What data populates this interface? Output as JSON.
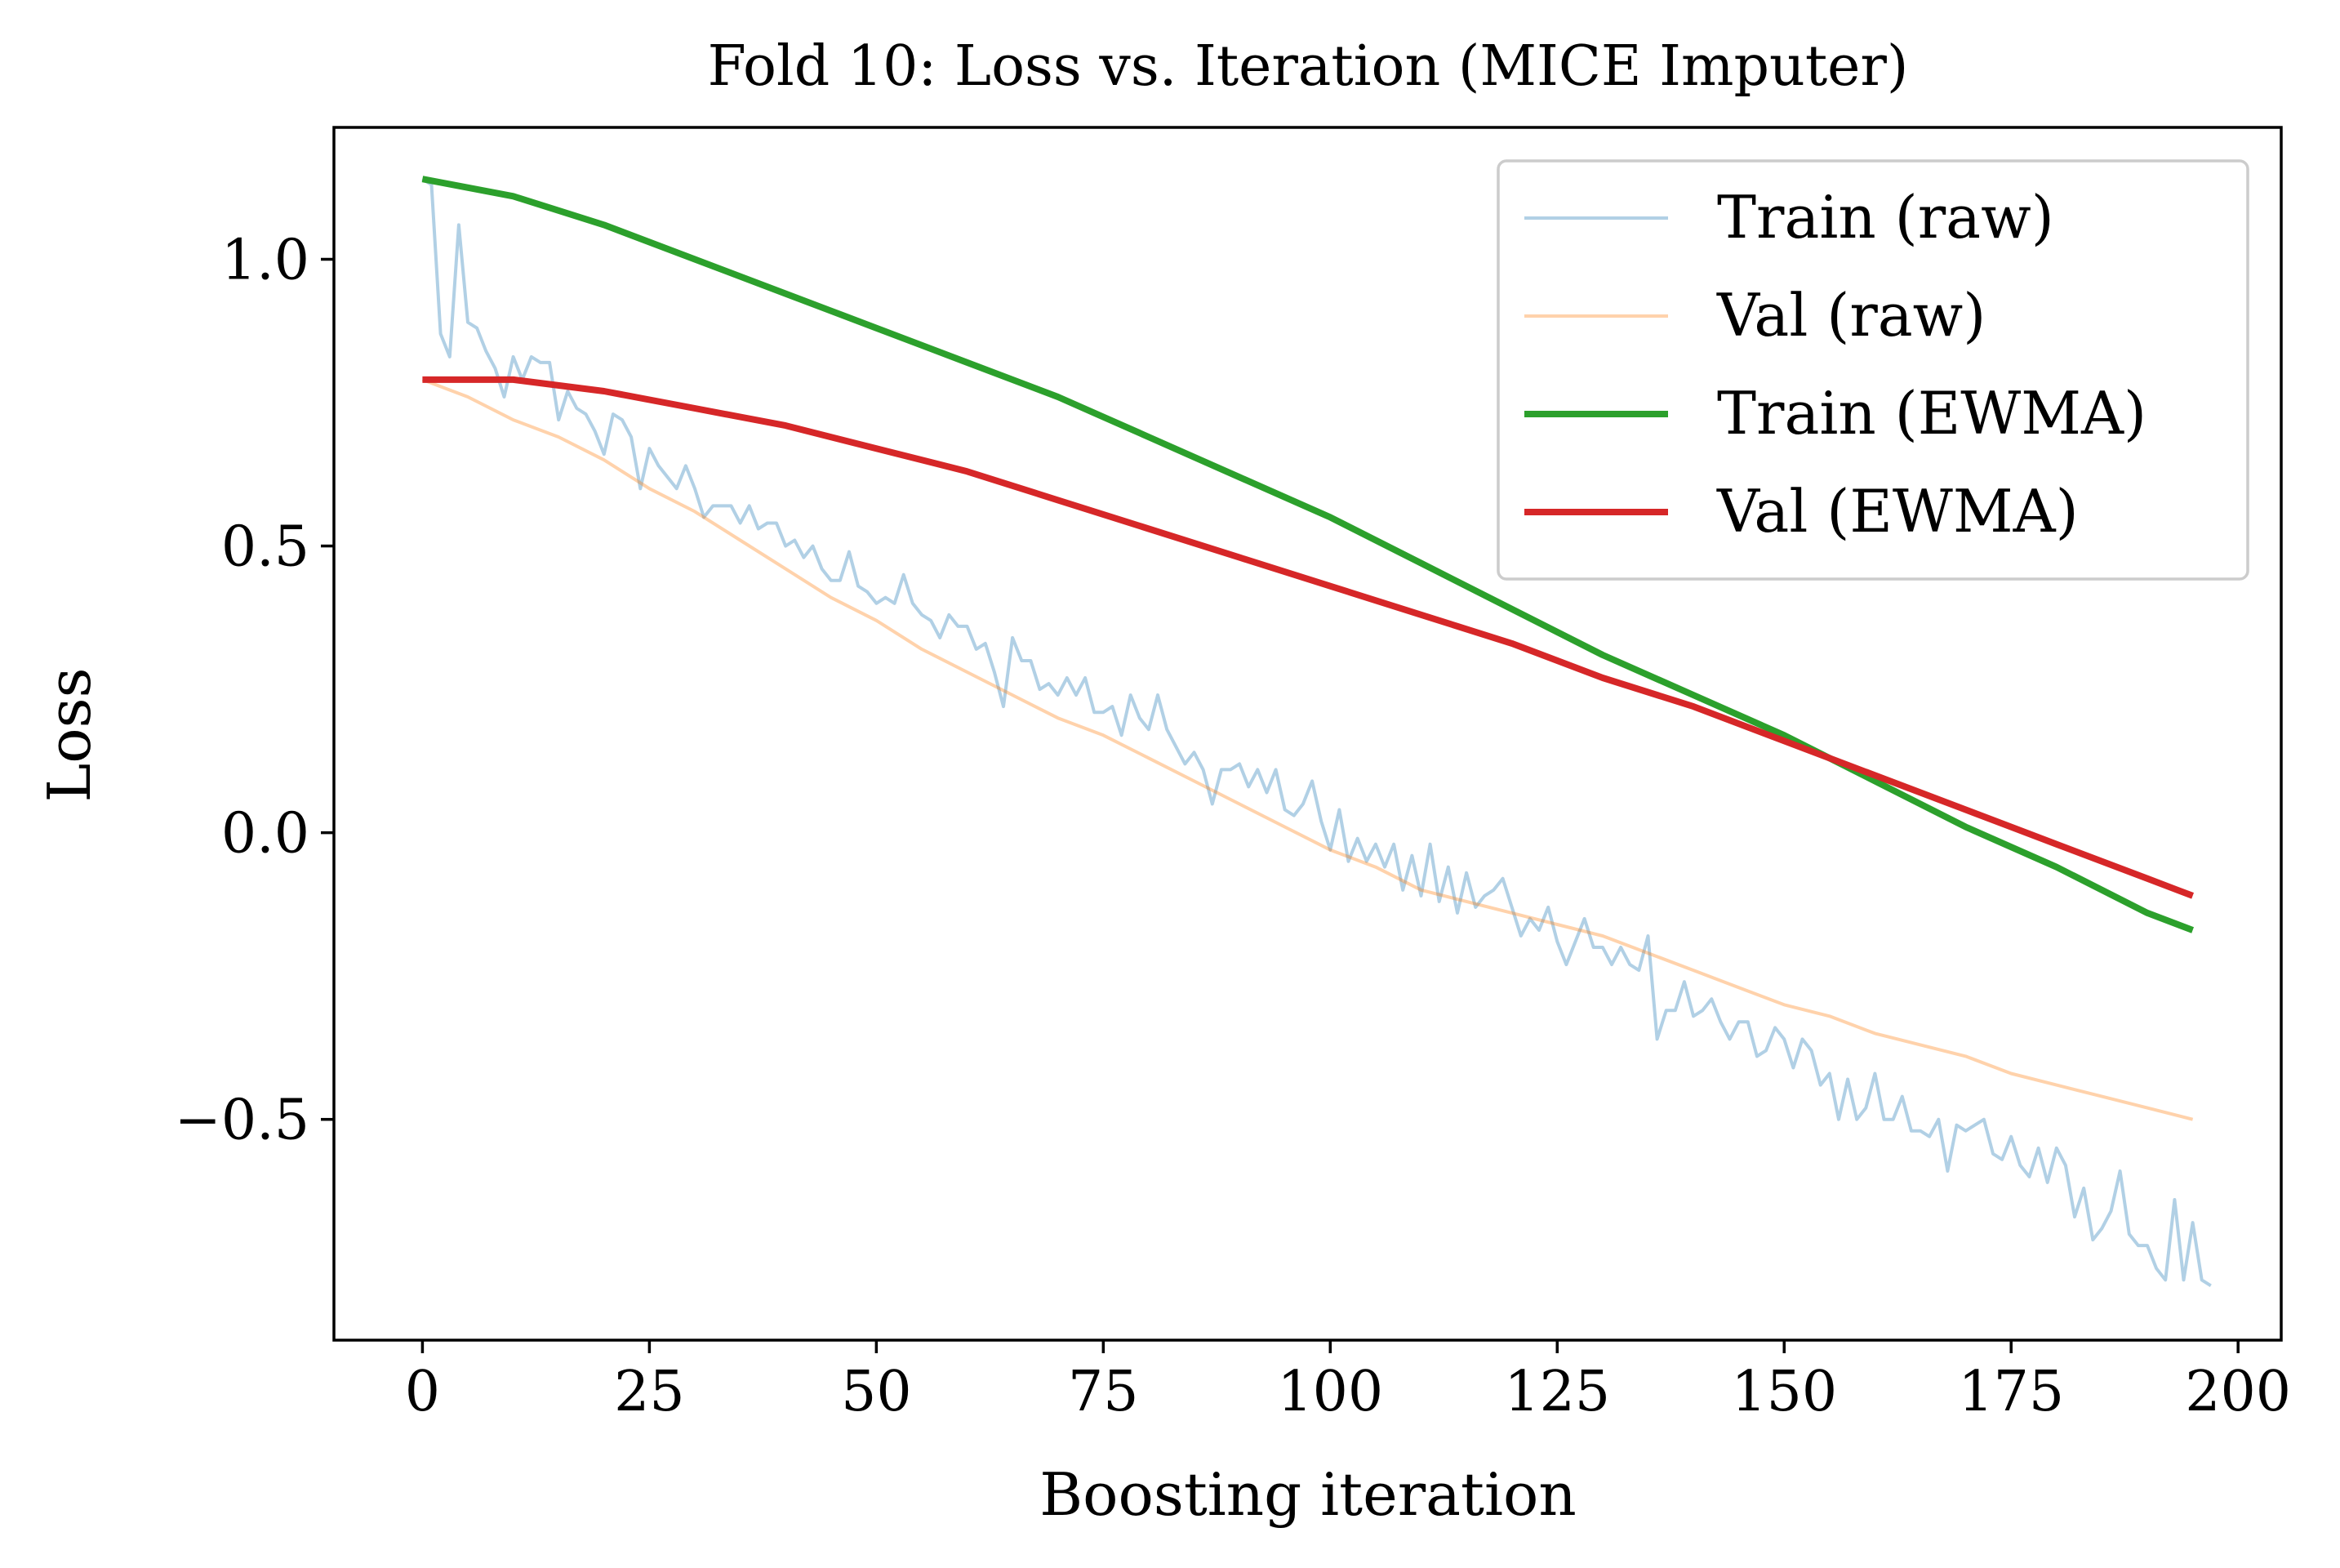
{
  "chart_data": {
    "type": "line",
    "title": "Fold 10: Loss vs. Iteration (MICE Imputer)",
    "xlabel": "Boosting iteration",
    "ylabel": "Loss",
    "xlim": [
      -9.75,
      204.75
    ],
    "ylim": [
      -0.885,
      1.23
    ],
    "xticks": [
      0,
      25,
      50,
      75,
      100,
      125,
      150,
      175,
      200
    ],
    "xtick_labels": [
      "0",
      "25",
      "50",
      "75",
      "100",
      "125",
      "150",
      "175",
      "200"
    ],
    "yticks": [
      -0.5,
      0.0,
      0.5,
      1.0
    ],
    "ytick_labels": [
      "−0.5",
      "0.0",
      "0.5",
      "1.0"
    ],
    "grid": false,
    "legend_position": "top-right",
    "series": [
      {
        "name": "Train (raw)",
        "color": "#1f77b4",
        "opacity": 0.35,
        "width": "thin",
        "points": [
          [
            0,
            1.14
          ],
          [
            1,
            1.13
          ],
          [
            2,
            0.87
          ],
          [
            3,
            0.83
          ],
          [
            4,
            1.06
          ],
          [
            5,
            0.89
          ],
          [
            6,
            0.88
          ],
          [
            7,
            0.84
          ],
          [
            8,
            0.81
          ],
          [
            9,
            0.76
          ],
          [
            10,
            0.83
          ],
          [
            11,
            0.79
          ],
          [
            12,
            0.83
          ],
          [
            13,
            0.82
          ],
          [
            14,
            0.82
          ],
          [
            15,
            0.72
          ],
          [
            16,
            0.77
          ],
          [
            17,
            0.74
          ],
          [
            18,
            0.73
          ],
          [
            19,
            0.7
          ],
          [
            20,
            0.66
          ],
          [
            21,
            0.73
          ],
          [
            22,
            0.72
          ],
          [
            23,
            0.69
          ],
          [
            24,
            0.6
          ],
          [
            25,
            0.67
          ],
          [
            26,
            0.64
          ],
          [
            27,
            0.62
          ],
          [
            28,
            0.6
          ],
          [
            29,
            0.64
          ],
          [
            30,
            0.6
          ],
          [
            31,
            0.55
          ],
          [
            32,
            0.57
          ],
          [
            33,
            0.57
          ],
          [
            34,
            0.57
          ],
          [
            35,
            0.54
          ],
          [
            36,
            0.57
          ],
          [
            37,
            0.53
          ],
          [
            38,
            0.54
          ],
          [
            39,
            0.54
          ],
          [
            40,
            0.5
          ],
          [
            41,
            0.51
          ],
          [
            42,
            0.48
          ],
          [
            43,
            0.5
          ],
          [
            44,
            0.46
          ],
          [
            45,
            0.44
          ],
          [
            46,
            0.44
          ],
          [
            47,
            0.49
          ],
          [
            48,
            0.43
          ],
          [
            49,
            0.42
          ],
          [
            50,
            0.4
          ],
          [
            51,
            0.41
          ],
          [
            52,
            0.4
          ],
          [
            53,
            0.45
          ],
          [
            54,
            0.4
          ],
          [
            55,
            0.38
          ],
          [
            56,
            0.37
          ],
          [
            57,
            0.34
          ],
          [
            58,
            0.38
          ],
          [
            59,
            0.36
          ],
          [
            60,
            0.36
          ],
          [
            61,
            0.32
          ],
          [
            62,
            0.33
          ],
          [
            63,
            0.28
          ],
          [
            64,
            0.22
          ],
          [
            65,
            0.34
          ],
          [
            66,
            0.3
          ],
          [
            67,
            0.3
          ],
          [
            68,
            0.25
          ],
          [
            69,
            0.26
          ],
          [
            70,
            0.24
          ],
          [
            71,
            0.27
          ],
          [
            72,
            0.24
          ],
          [
            73,
            0.27
          ],
          [
            74,
            0.21
          ],
          [
            75,
            0.21
          ],
          [
            76,
            0.22
          ],
          [
            77,
            0.17
          ],
          [
            78,
            0.24
          ],
          [
            79,
            0.2
          ],
          [
            80,
            0.18
          ],
          [
            81,
            0.24
          ],
          [
            82,
            0.18
          ],
          [
            83,
            0.15
          ],
          [
            84,
            0.12
          ],
          [
            85,
            0.14
          ],
          [
            86,
            0.11
          ],
          [
            87,
            0.05
          ],
          [
            88,
            0.11
          ],
          [
            89,
            0.11
          ],
          [
            90,
            0.12
          ],
          [
            91,
            0.08
          ],
          [
            92,
            0.11
          ],
          [
            93,
            0.07
          ],
          [
            94,
            0.11
          ],
          [
            95,
            0.04
          ],
          [
            96,
            0.03
          ],
          [
            97,
            0.05
          ],
          [
            98,
            0.09
          ],
          [
            99,
            0.02
          ],
          [
            100,
            -0.03
          ],
          [
            101,
            0.04
          ],
          [
            102,
            -0.05
          ],
          [
            103,
            -0.01
          ],
          [
            104,
            -0.05
          ],
          [
            105,
            -0.02
          ],
          [
            106,
            -0.06
          ],
          [
            107,
            -0.02
          ],
          [
            108,
            -0.1
          ],
          [
            109,
            -0.04
          ],
          [
            110,
            -0.11
          ],
          [
            111,
            -0.02
          ],
          [
            112,
            -0.12
          ],
          [
            113,
            -0.06
          ],
          [
            114,
            -0.14
          ],
          [
            115,
            -0.07
          ],
          [
            116,
            -0.13
          ],
          [
            117,
            -0.11
          ],
          [
            118,
            -0.1
          ],
          [
            119,
            -0.08
          ],
          [
            120,
            -0.13
          ],
          [
            121,
            -0.18
          ],
          [
            122,
            -0.15
          ],
          [
            123,
            -0.17
          ],
          [
            124,
            -0.13
          ],
          [
            125,
            -0.19
          ],
          [
            126,
            -0.23
          ],
          [
            127,
            -0.19
          ],
          [
            128,
            -0.15
          ],
          [
            129,
            -0.2
          ],
          [
            130,
            -0.2
          ],
          [
            131,
            -0.23
          ],
          [
            132,
            -0.2
          ],
          [
            133,
            -0.23
          ],
          [
            134,
            -0.24
          ],
          [
            135,
            -0.18
          ],
          [
            136,
            -0.36
          ],
          [
            137,
            -0.31
          ],
          [
            138,
            -0.31
          ],
          [
            139,
            -0.26
          ],
          [
            140,
            -0.32
          ],
          [
            141,
            -0.31
          ],
          [
            142,
            -0.29
          ],
          [
            143,
            -0.33
          ],
          [
            144,
            -0.36
          ],
          [
            145,
            -0.33
          ],
          [
            146,
            -0.33
          ],
          [
            147,
            -0.39
          ],
          [
            148,
            -0.38
          ],
          [
            149,
            -0.34
          ],
          [
            150,
            -0.36
          ],
          [
            151,
            -0.41
          ],
          [
            152,
            -0.36
          ],
          [
            153,
            -0.38
          ],
          [
            154,
            -0.44
          ],
          [
            155,
            -0.42
          ],
          [
            156,
            -0.5
          ],
          [
            157,
            -0.43
          ],
          [
            158,
            -0.5
          ],
          [
            159,
            -0.48
          ],
          [
            160,
            -0.42
          ],
          [
            161,
            -0.5
          ],
          [
            162,
            -0.5
          ],
          [
            163,
            -0.46
          ],
          [
            164,
            -0.52
          ],
          [
            165,
            -0.52
          ],
          [
            166,
            -0.53
          ],
          [
            167,
            -0.5
          ],
          [
            168,
            -0.59
          ],
          [
            169,
            -0.51
          ],
          [
            170,
            -0.52
          ],
          [
            171,
            -0.51
          ],
          [
            172,
            -0.5
          ],
          [
            173,
            -0.56
          ],
          [
            174,
            -0.57
          ],
          [
            175,
            -0.53
          ],
          [
            176,
            -0.58
          ],
          [
            177,
            -0.6
          ],
          [
            178,
            -0.55
          ],
          [
            179,
            -0.61
          ],
          [
            180,
            -0.55
          ],
          [
            181,
            -0.58
          ],
          [
            182,
            -0.67
          ],
          [
            183,
            -0.62
          ],
          [
            184,
            -0.71
          ],
          [
            185,
            -0.69
          ],
          [
            186,
            -0.66
          ],
          [
            187,
            -0.59
          ],
          [
            188,
            -0.7
          ],
          [
            189,
            -0.72
          ],
          [
            190,
            -0.72
          ],
          [
            191,
            -0.76
          ],
          [
            192,
            -0.78
          ],
          [
            193,
            -0.64
          ],
          [
            194,
            -0.78
          ],
          [
            195,
            -0.68
          ],
          [
            196,
            -0.78
          ],
          [
            197,
            -0.79
          ]
        ]
      },
      {
        "name": "Val (raw)",
        "color": "#ff7f0e",
        "opacity": 0.35,
        "width": "thin",
        "points": [
          [
            0,
            0.79
          ],
          [
            5,
            0.76
          ],
          [
            10,
            0.72
          ],
          [
            15,
            0.69
          ],
          [
            20,
            0.65
          ],
          [
            25,
            0.6
          ],
          [
            30,
            0.56
          ],
          [
            35,
            0.51
          ],
          [
            40,
            0.46
          ],
          [
            45,
            0.41
          ],
          [
            50,
            0.37
          ],
          [
            55,
            0.32
          ],
          [
            60,
            0.28
          ],
          [
            65,
            0.24
          ],
          [
            70,
            0.2
          ],
          [
            75,
            0.17
          ],
          [
            80,
            0.13
          ],
          [
            85,
            0.09
          ],
          [
            90,
            0.05
          ],
          [
            95,
            0.01
          ],
          [
            100,
            -0.03
          ],
          [
            105,
            -0.06
          ],
          [
            110,
            -0.1
          ],
          [
            115,
            -0.12
          ],
          [
            120,
            -0.14
          ],
          [
            125,
            -0.16
          ],
          [
            130,
            -0.18
          ],
          [
            135,
            -0.21
          ],
          [
            140,
            -0.24
          ],
          [
            145,
            -0.27
          ],
          [
            150,
            -0.3
          ],
          [
            155,
            -0.32
          ],
          [
            160,
            -0.35
          ],
          [
            165,
            -0.37
          ],
          [
            170,
            -0.39
          ],
          [
            175,
            -0.42
          ],
          [
            180,
            -0.44
          ],
          [
            185,
            -0.46
          ],
          [
            190,
            -0.48
          ],
          [
            195,
            -0.5
          ]
        ]
      },
      {
        "name": "Train (EWMA)",
        "color": "#2ca02c",
        "opacity": 1,
        "width": "thick",
        "points": [
          [
            0,
            1.14
          ],
          [
            10,
            1.11
          ],
          [
            20,
            1.06
          ],
          [
            30,
            1.0
          ],
          [
            40,
            0.94
          ],
          [
            50,
            0.88
          ],
          [
            60,
            0.82
          ],
          [
            70,
            0.76
          ],
          [
            80,
            0.69
          ],
          [
            90,
            0.62
          ],
          [
            100,
            0.55
          ],
          [
            110,
            0.47
          ],
          [
            120,
            0.39
          ],
          [
            130,
            0.31
          ],
          [
            140,
            0.24
          ],
          [
            150,
            0.17
          ],
          [
            160,
            0.09
          ],
          [
            170,
            0.01
          ],
          [
            180,
            -0.06
          ],
          [
            190,
            -0.14
          ],
          [
            195,
            -0.17
          ]
        ]
      },
      {
        "name": "Val (EWMA)",
        "color": "#d62728",
        "opacity": 1,
        "width": "thick",
        "points": [
          [
            0,
            0.79
          ],
          [
            10,
            0.79
          ],
          [
            20,
            0.77
          ],
          [
            30,
            0.74
          ],
          [
            40,
            0.71
          ],
          [
            50,
            0.67
          ],
          [
            60,
            0.63
          ],
          [
            70,
            0.58
          ],
          [
            80,
            0.53
          ],
          [
            90,
            0.48
          ],
          [
            100,
            0.43
          ],
          [
            110,
            0.38
          ],
          [
            120,
            0.33
          ],
          [
            130,
            0.27
          ],
          [
            140,
            0.22
          ],
          [
            150,
            0.16
          ],
          [
            160,
            0.1
          ],
          [
            170,
            0.04
          ],
          [
            180,
            -0.02
          ],
          [
            190,
            -0.08
          ],
          [
            195,
            -0.11
          ]
        ]
      }
    ]
  }
}
